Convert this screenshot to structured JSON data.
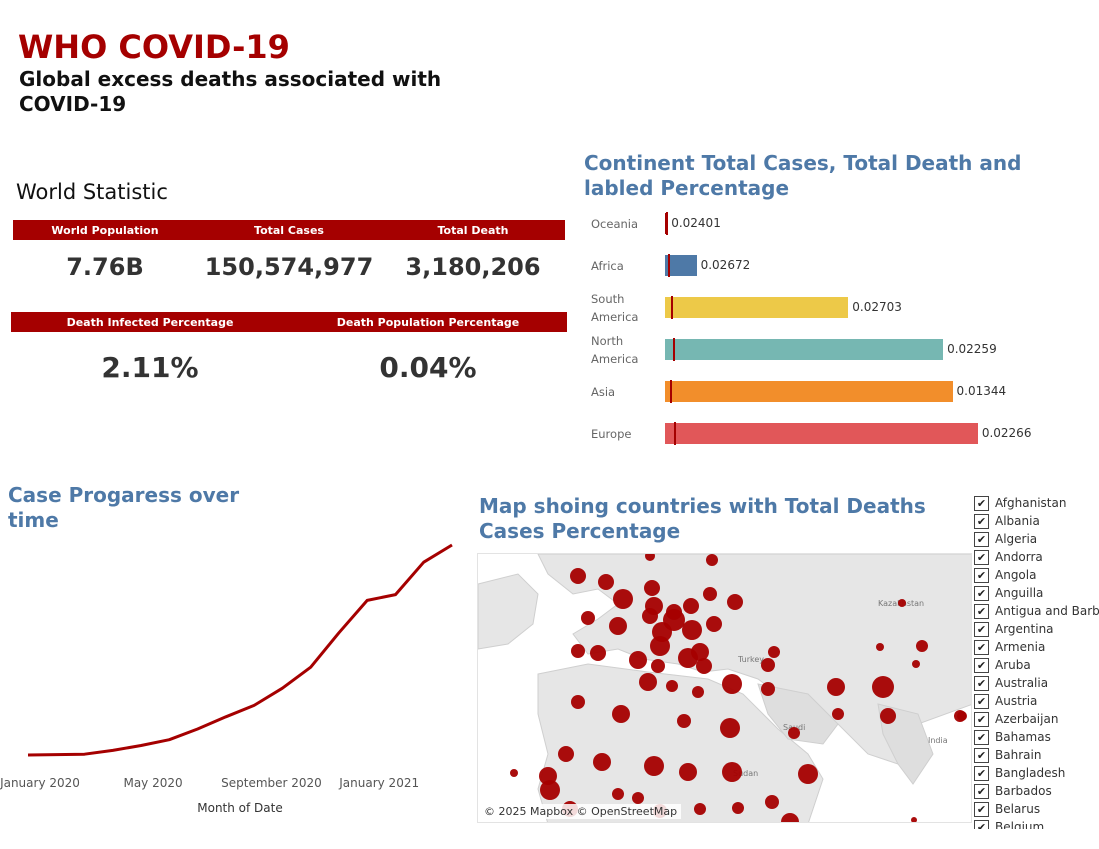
{
  "header": {
    "title": "WHO COVID-19",
    "subtitle": "Global excess deaths associated with COVID-19"
  },
  "world_statistic": {
    "title": "World Statistic",
    "row1": {
      "labels": [
        "World Population",
        "Total Cases",
        "Total Death"
      ],
      "values": [
        "7.76B",
        "150,574,977",
        "3,180,206"
      ]
    },
    "row2": {
      "labels": [
        "Death Infected Percentage",
        "Death Population Percentage"
      ],
      "values": [
        "2.11%",
        "0.04%"
      ]
    }
  },
  "continent_chart": {
    "title": "Continent Total Cases, Total Death and labled Percentage",
    "chart_data": {
      "type": "bar",
      "orientation": "horizontal",
      "categories": [
        "Oceania",
        "Africa",
        "South America",
        "North America",
        "Asia",
        "Europe"
      ],
      "values": [
        0.7,
        10,
        58,
        88,
        91,
        99
      ],
      "death_marker_values": [
        0.3,
        0.8,
        2.0,
        2.4,
        1.6,
        2.8
      ],
      "labels": [
        "0.02401",
        "0.02672",
        "0.02703",
        "0.02259",
        "0.01344",
        "0.02266"
      ],
      "colors": [
        "#a50000",
        "#4e79a7",
        "#edc948",
        "#76b7b2",
        "#f28e2b",
        "#e15759"
      ],
      "marker_color": "#a50000",
      "xlim": [
        0,
        100
      ],
      "grid": false
    }
  },
  "line_chart": {
    "title": "Case Progaress over time",
    "chart_data": {
      "type": "line",
      "x": [
        "2020-01",
        "2020-02",
        "2020-03",
        "2020-04",
        "2020-05",
        "2020-06",
        "2020-07",
        "2020-08",
        "2020-09",
        "2020-10",
        "2020-11",
        "2020-12",
        "2021-01",
        "2021-02",
        "2021-03",
        "2021-04"
      ],
      "values": [
        0.0,
        0.1,
        0.2,
        1.2,
        2.5,
        4.0,
        6.8,
        10.0,
        13.0,
        17.5,
        23.0,
        32.0,
        40.5,
        42.0,
        50.5,
        55.0
      ],
      "xlabel": "Month of Date",
      "ylabel": "",
      "tick_labels": [
        "January 2020",
        "May 2020",
        "September 2020",
        "January 2021"
      ],
      "line_color": "#a50000",
      "grid": false
    }
  },
  "map": {
    "title": "Map shoing countries with Total Deaths Cases Percentage",
    "credit": "© 2025 Mapbox © OpenStreetMap",
    "place_labels": [
      "Kazakhstan",
      "Turkey",
      "Saudi",
      "Sudan",
      "India"
    ],
    "marker_color": "#a50000"
  },
  "country_filter": {
    "check_glyph": "✔",
    "items": [
      "Afghanistan",
      "Albania",
      "Algeria",
      "Andorra",
      "Angola",
      "Anguilla",
      "Antigua and Barb..",
      "Argentina",
      "Armenia",
      "Aruba",
      "Australia",
      "Austria",
      "Azerbaijan",
      "Bahamas",
      "Bahrain",
      "Bangladesh",
      "Barbados",
      "Belarus",
      "Belgium"
    ]
  }
}
